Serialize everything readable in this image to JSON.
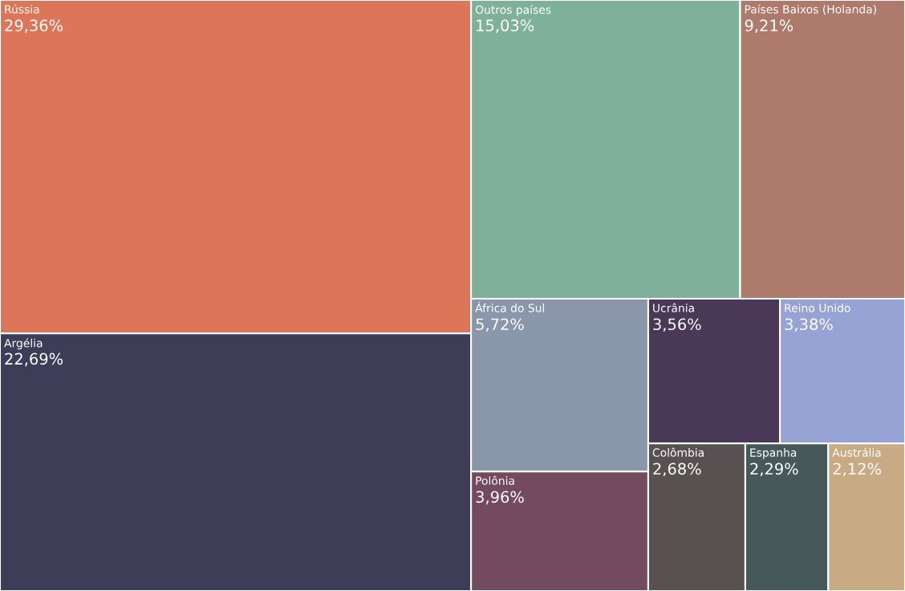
{
  "chart_data": {
    "type": "other",
    "categories": [
      "Rússia",
      "Argélia",
      "Outros países",
      "Países Baixos (Holanda)",
      "África do Sul",
      "Polônia",
      "Ucrânia",
      "Reino Unido",
      "Colômbia",
      "Espanha",
      "Austrália"
    ],
    "values": [
      29.36,
      22.69,
      15.03,
      9.21,
      5.72,
      3.96,
      3.56,
      3.38,
      2.68,
      2.29,
      2.12
    ],
    "value_labels": [
      "29,36%",
      "22,69%",
      "15,03%",
      "9,21%",
      "5,72%",
      "3,96%",
      "3,56%",
      "3,38%",
      "2,68%",
      "2,29%",
      "2,12%"
    ],
    "colors": [
      "#dd7558",
      "#3d3d57",
      "#7fb09a",
      "#ad7a6c",
      "#8a96aa",
      "#744a5f",
      "#4a3857",
      "#96a3d4",
      "#575151",
      "#47585b",
      "#c8aa84"
    ]
  }
}
